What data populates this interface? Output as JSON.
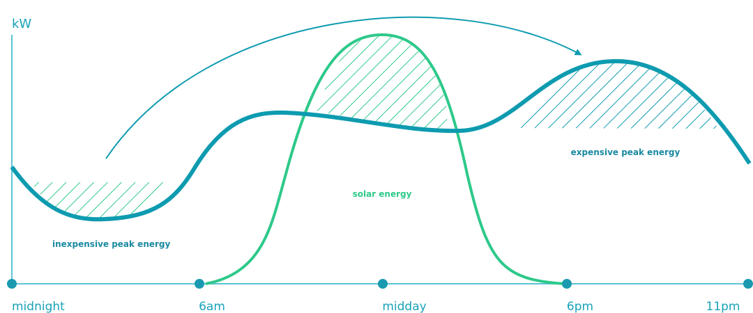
{
  "axis": {
    "y_label": "kW",
    "x_labels": [
      "midnight",
      "6am",
      "midday",
      "6pm",
      "11pm"
    ]
  },
  "annotations": {
    "inexpensive": "inexpensive peak energy",
    "solar": "solar energy",
    "expensive": "expensive peak energy"
  }
}
